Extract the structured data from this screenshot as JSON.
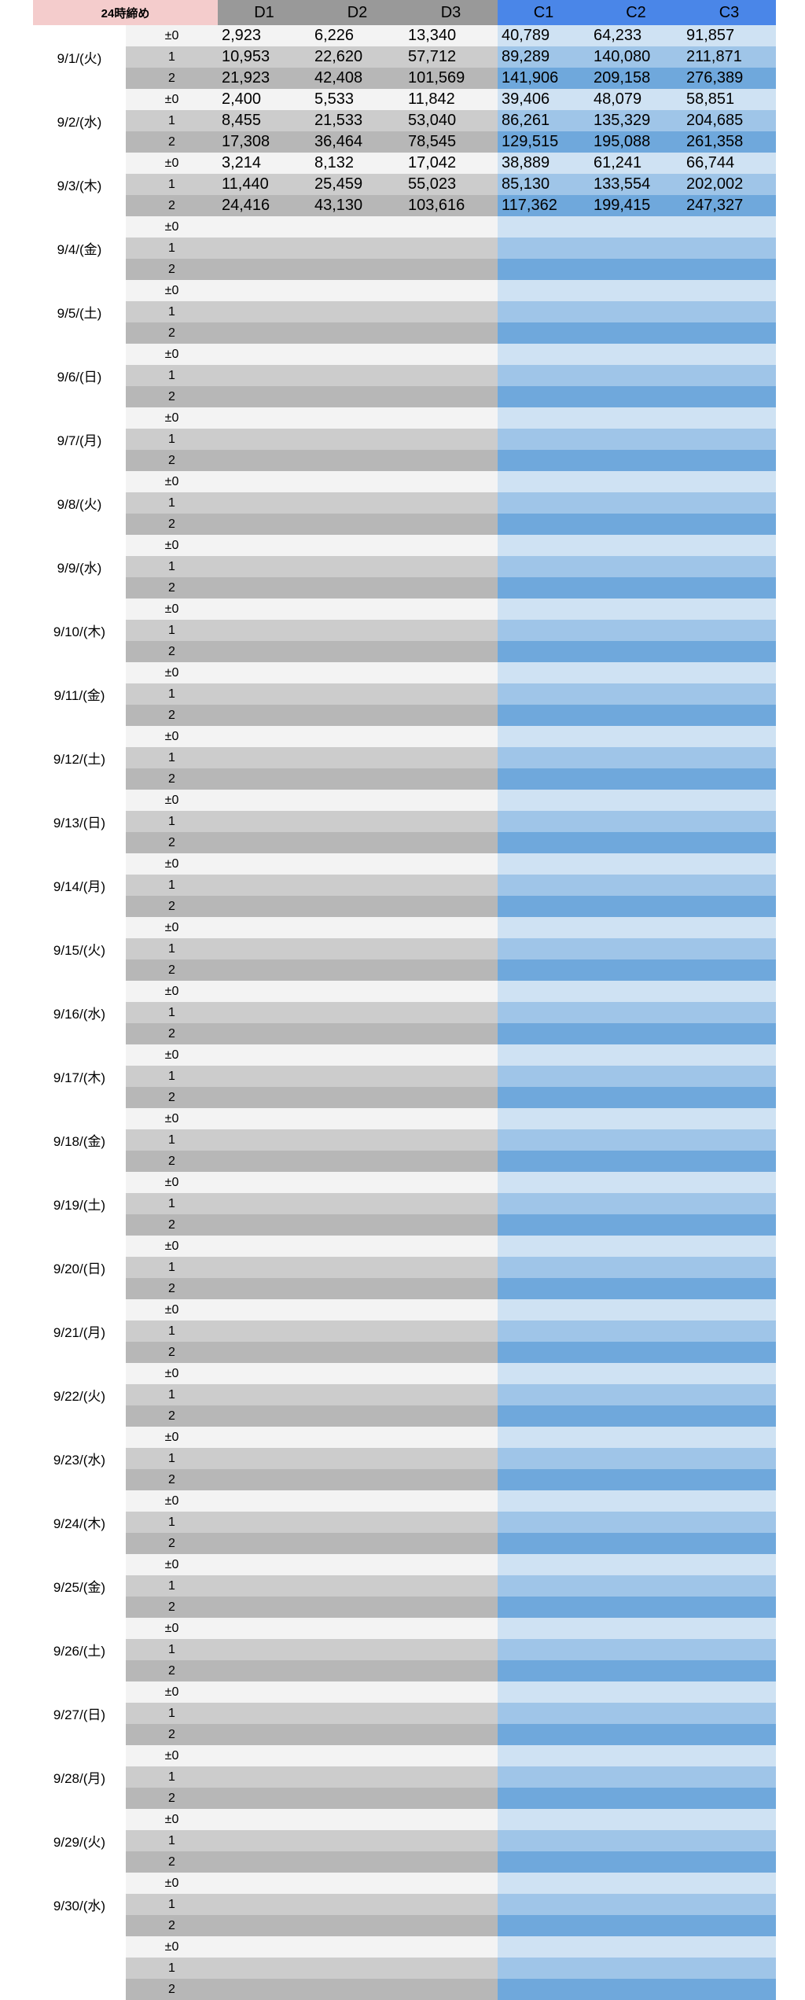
{
  "header": {
    "label": "24時締め",
    "columns": [
      "D1",
      "D2",
      "D3",
      "C1",
      "C2",
      "C3"
    ]
  },
  "groups": [
    {
      "date": "9/1/(火)",
      "rows": [
        {
          "sub": "±0",
          "cells": [
            "2,923",
            "6,226",
            "13,340",
            "40,789",
            "64,233",
            "91,857"
          ]
        },
        {
          "sub": "1",
          "cells": [
            "10,953",
            "22,620",
            "57,712",
            "89,289",
            "140,080",
            "211,871"
          ]
        },
        {
          "sub": "2",
          "cells": [
            "21,923",
            "42,408",
            "101,569",
            "141,906",
            "209,158",
            "276,389"
          ]
        }
      ]
    },
    {
      "date": "9/2/(水)",
      "rows": [
        {
          "sub": "±0",
          "cells": [
            "2,400",
            "5,533",
            "11,842",
            "39,406",
            "48,079",
            "58,851"
          ]
        },
        {
          "sub": "1",
          "cells": [
            "8,455",
            "21,533",
            "53,040",
            "86,261",
            "135,329",
            "204,685"
          ]
        },
        {
          "sub": "2",
          "cells": [
            "17,308",
            "36,464",
            "78,545",
            "129,515",
            "195,088",
            "261,358"
          ]
        }
      ]
    },
    {
      "date": "9/3/(木)",
      "rows": [
        {
          "sub": "±0",
          "cells": [
            "3,214",
            "8,132",
            "17,042",
            "38,889",
            "61,241",
            "66,744"
          ]
        },
        {
          "sub": "1",
          "cells": [
            "11,440",
            "25,459",
            "55,023",
            "85,130",
            "133,554",
            "202,002"
          ]
        },
        {
          "sub": "2",
          "cells": [
            "24,416",
            "43,130",
            "103,616",
            "117,362",
            "199,415",
            "247,327"
          ]
        }
      ]
    },
    {
      "date": "9/4/(金)",
      "rows": [
        {
          "sub": "±0"
        },
        {
          "sub": "1"
        },
        {
          "sub": "2"
        }
      ]
    },
    {
      "date": "9/5/(土)",
      "rows": [
        {
          "sub": "±0"
        },
        {
          "sub": "1"
        },
        {
          "sub": "2"
        }
      ]
    },
    {
      "date": "9/6/(日)",
      "rows": [
        {
          "sub": "±0"
        },
        {
          "sub": "1"
        },
        {
          "sub": "2"
        }
      ]
    },
    {
      "date": "9/7/(月)",
      "rows": [
        {
          "sub": "±0"
        },
        {
          "sub": "1"
        },
        {
          "sub": "2"
        }
      ]
    },
    {
      "date": "9/8/(火)",
      "rows": [
        {
          "sub": "±0"
        },
        {
          "sub": "1"
        },
        {
          "sub": "2"
        }
      ]
    },
    {
      "date": "9/9/(水)",
      "rows": [
        {
          "sub": "±0"
        },
        {
          "sub": "1"
        },
        {
          "sub": "2"
        }
      ]
    },
    {
      "date": "9/10/(木)",
      "rows": [
        {
          "sub": "±0"
        },
        {
          "sub": "1"
        },
        {
          "sub": "2"
        }
      ]
    },
    {
      "date": "9/11/(金)",
      "rows": [
        {
          "sub": "±0"
        },
        {
          "sub": "1"
        },
        {
          "sub": "2"
        }
      ]
    },
    {
      "date": "9/12/(土)",
      "rows": [
        {
          "sub": "±0"
        },
        {
          "sub": "1"
        },
        {
          "sub": "2"
        }
      ]
    },
    {
      "date": "9/13/(日)",
      "rows": [
        {
          "sub": "±0"
        },
        {
          "sub": "1"
        },
        {
          "sub": "2"
        }
      ]
    },
    {
      "date": "9/14/(月)",
      "rows": [
        {
          "sub": "±0"
        },
        {
          "sub": "1"
        },
        {
          "sub": "2"
        }
      ]
    },
    {
      "date": "9/15/(火)",
      "rows": [
        {
          "sub": "±0"
        },
        {
          "sub": "1"
        },
        {
          "sub": "2"
        }
      ]
    },
    {
      "date": "9/16/(水)",
      "rows": [
        {
          "sub": "±0"
        },
        {
          "sub": "1"
        },
        {
          "sub": "2"
        }
      ]
    },
    {
      "date": "9/17/(木)",
      "rows": [
        {
          "sub": "±0"
        },
        {
          "sub": "1"
        },
        {
          "sub": "2"
        }
      ]
    },
    {
      "date": "9/18/(金)",
      "rows": [
        {
          "sub": "±0"
        },
        {
          "sub": "1"
        },
        {
          "sub": "2"
        }
      ]
    },
    {
      "date": "9/19/(土)",
      "rows": [
        {
          "sub": "±0"
        },
        {
          "sub": "1"
        },
        {
          "sub": "2"
        }
      ]
    },
    {
      "date": "9/20/(日)",
      "rows": [
        {
          "sub": "±0"
        },
        {
          "sub": "1"
        },
        {
          "sub": "2"
        }
      ]
    },
    {
      "date": "9/21/(月)",
      "rows": [
        {
          "sub": "±0"
        },
        {
          "sub": "1"
        },
        {
          "sub": "2"
        }
      ]
    },
    {
      "date": "9/22/(火)",
      "rows": [
        {
          "sub": "±0"
        },
        {
          "sub": "1"
        },
        {
          "sub": "2"
        }
      ]
    },
    {
      "date": "9/23/(水)",
      "rows": [
        {
          "sub": "±0"
        },
        {
          "sub": "1"
        },
        {
          "sub": "2"
        }
      ]
    },
    {
      "date": "9/24/(木)",
      "rows": [
        {
          "sub": "±0"
        },
        {
          "sub": "1"
        },
        {
          "sub": "2"
        }
      ]
    },
    {
      "date": "9/25/(金)",
      "rows": [
        {
          "sub": "±0"
        },
        {
          "sub": "1"
        },
        {
          "sub": "2"
        }
      ]
    },
    {
      "date": "9/26/(土)",
      "rows": [
        {
          "sub": "±0"
        },
        {
          "sub": "1"
        },
        {
          "sub": "2"
        }
      ]
    },
    {
      "date": "9/27/(日)",
      "rows": [
        {
          "sub": "±0"
        },
        {
          "sub": "1"
        },
        {
          "sub": "2"
        }
      ]
    },
    {
      "date": "9/28/(月)",
      "rows": [
        {
          "sub": "±0"
        },
        {
          "sub": "1"
        },
        {
          "sub": "2"
        }
      ]
    },
    {
      "date": "9/29/(火)",
      "rows": [
        {
          "sub": "±0"
        },
        {
          "sub": "1"
        },
        {
          "sub": "2"
        }
      ]
    },
    {
      "date": "9/30/(水)",
      "rows": [
        {
          "sub": "±0"
        },
        {
          "sub": "1"
        },
        {
          "sub": "2"
        }
      ]
    },
    {
      "rows": [
        {
          "sub": "±0"
        },
        {
          "sub": "1"
        },
        {
          "sub": "2"
        }
      ]
    }
  ]
}
